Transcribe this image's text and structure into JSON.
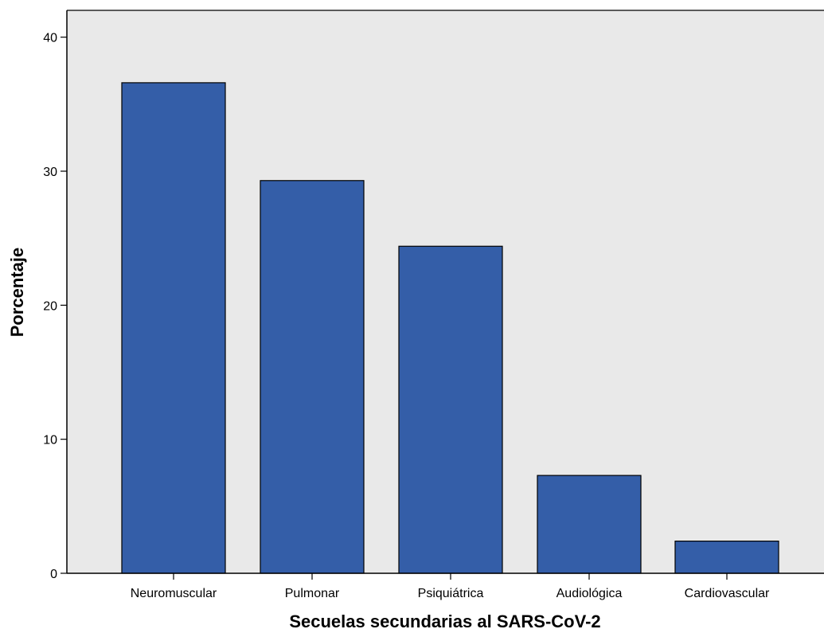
{
  "chart_data": {
    "type": "bar",
    "categories": [
      "Neuromuscular",
      "Pulmonar",
      "Psiquiátrica",
      "Audiológica",
      "Cardiovascular"
    ],
    "values": [
      36.6,
      29.3,
      24.4,
      7.3,
      2.4
    ],
    "title": "",
    "xlabel": "Secuelas secundarias al SARS-CoV-2",
    "ylabel": "Porcentaje",
    "ylim": [
      0,
      42
    ],
    "yticks": [
      0,
      10,
      20,
      30,
      40
    ],
    "grid": false,
    "legend": "none"
  },
  "colors": {
    "bar_fill": "#345ea8",
    "bar_stroke": "#000000",
    "plot_background": "#e9e9e9"
  }
}
